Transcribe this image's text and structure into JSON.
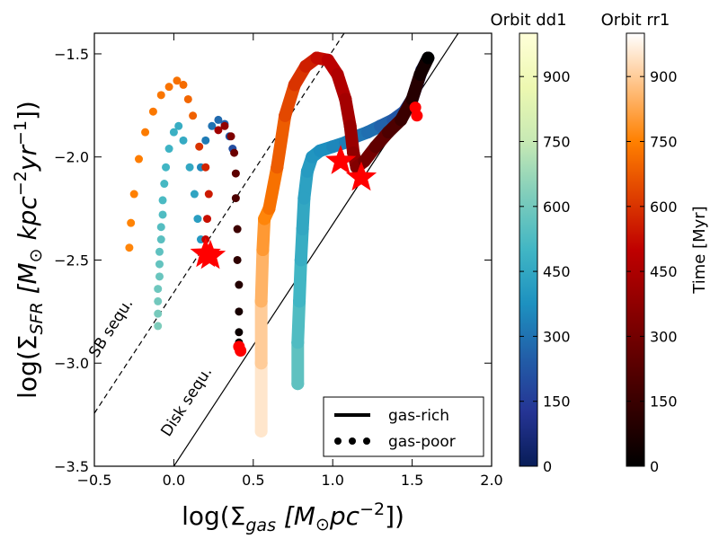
{
  "chart_data": {
    "type": "scatter",
    "xlabel": [
      "log(Σ",
      "gas",
      " [M",
      "⊙",
      "pc",
      "−2",
      "])"
    ],
    "ylabel": [
      "log(Σ",
      "SFR",
      " [M",
      "⊙",
      " kpc",
      "−2",
      "yr",
      "−1",
      "])"
    ],
    "xlim": [
      -0.5,
      2.0
    ],
    "ylim": [
      -3.5,
      -1.4
    ],
    "xticks": [
      {
        "value": -0.5,
        "label": "−0.5"
      },
      {
        "value": 0.0,
        "label": "0.0"
      },
      {
        "value": 0.5,
        "label": "0.5"
      },
      {
        "value": 1.0,
        "label": "1.0"
      },
      {
        "value": 1.5,
        "label": "1.5"
      },
      {
        "value": 2.0,
        "label": "2.0"
      }
    ],
    "yticks": [
      {
        "value": -3.5,
        "label": "−3.5"
      },
      {
        "value": -3.0,
        "label": "−3.0"
      },
      {
        "value": -2.5,
        "label": "−2.5"
      },
      {
        "value": -2.0,
        "label": "−2.0"
      },
      {
        "value": -1.5,
        "label": "−1.5"
      }
    ],
    "colorbars": [
      {
        "title": "Orbit dd1",
        "lim": [
          0,
          1000
        ],
        "ticks": [
          0,
          150,
          300,
          450,
          600,
          750,
          900
        ],
        "colors": [
          "#081d58",
          "#253494",
          "#225ea8",
          "#1d91c0",
          "#41b6c4",
          "#7fcdbb",
          "#c7e9b4",
          "#edf8b1",
          "#ffffd9"
        ]
      },
      {
        "title": "Orbit rr1",
        "label": "Time [Myr]",
        "lim": [
          0,
          1000
        ],
        "ticks": [
          0,
          150,
          300,
          450,
          600,
          750,
          900
        ],
        "colors": [
          "#000000",
          "#600000",
          "#bf0000",
          "#ff8000",
          "#ffffff"
        ]
      }
    ],
    "series": [
      {
        "colorbar": 0,
        "style": "line",
        "x": [
          0.78,
          0.78,
          0.79,
          0.8,
          0.81,
          0.82,
          0.84,
          0.87,
          0.92,
          1.0,
          1.08,
          1.15,
          1.22,
          1.3,
          1.38,
          1.45,
          1.5,
          1.53,
          1.56,
          1.6
        ],
        "y": [
          -3.1,
          -2.9,
          -2.7,
          -2.5,
          -2.35,
          -2.2,
          -2.07,
          -2.0,
          -1.97,
          -1.95,
          -1.93,
          -1.9,
          -1.88,
          -1.85,
          -1.82,
          -1.78,
          -1.72,
          -1.65,
          -1.58,
          -1.52
        ],
        "t": [
          560,
          530,
          500,
          470,
          450,
          430,
          410,
          390,
          370,
          350,
          330,
          310,
          290,
          260,
          230,
          200,
          150,
          100,
          50,
          0
        ]
      },
      {
        "colorbar": 1,
        "style": "line",
        "x": [
          0.55,
          0.55,
          0.55,
          0.56,
          0.57,
          0.6,
          0.65,
          0.7,
          0.76,
          0.83,
          0.9,
          0.97,
          1.03,
          1.08,
          1.11,
          1.13,
          1.15,
          1.2,
          1.27,
          1.35,
          1.43,
          1.5,
          1.55,
          1.6
        ],
        "y": [
          -3.33,
          -3.0,
          -2.7,
          -2.45,
          -2.3,
          -2.25,
          -2.05,
          -1.8,
          -1.65,
          -1.56,
          -1.52,
          -1.53,
          -1.6,
          -1.72,
          -1.85,
          -1.98,
          -2.05,
          -2.02,
          -1.95,
          -1.88,
          -1.82,
          -1.72,
          -1.6,
          -1.52
        ],
        "t": [
          950,
          900,
          850,
          800,
          760,
          720,
          680,
          640,
          600,
          560,
          520,
          490,
          460,
          430,
          400,
          370,
          340,
          300,
          250,
          200,
          150,
          100,
          50,
          0
        ]
      },
      {
        "colorbar": 0,
        "style": "dots",
        "x": [
          -0.1,
          -0.1,
          -0.1,
          -0.1,
          -0.09,
          -0.09,
          -0.09,
          -0.08,
          -0.08,
          -0.07,
          -0.07,
          -0.06,
          -0.05,
          -0.03,
          0.0,
          0.03,
          0.06,
          0.1,
          0.13,
          0.15,
          0.17,
          0.17,
          0.2,
          0.24,
          0.28,
          0.32,
          0.35,
          0.37
        ],
        "y": [
          -2.82,
          -2.76,
          -2.7,
          -2.64,
          -2.58,
          -2.52,
          -2.46,
          -2.4,
          -2.34,
          -2.28,
          -2.21,
          -2.13,
          -2.05,
          -1.96,
          -1.88,
          -1.85,
          -1.92,
          -2.05,
          -2.18,
          -2.3,
          -2.4,
          -2.05,
          -1.92,
          -1.85,
          -1.82,
          -1.84,
          -1.9,
          -1.96
        ],
        "t": [
          620,
          610,
          600,
          590,
          580,
          570,
          560,
          550,
          540,
          530,
          520,
          510,
          500,
          490,
          480,
          470,
          460,
          450,
          440,
          420,
          400,
          350,
          320,
          300,
          280,
          250,
          220,
          200
        ]
      },
      {
        "colorbar": 1,
        "style": "dots",
        "x": [
          -0.28,
          -0.27,
          -0.25,
          -0.22,
          -0.18,
          -0.13,
          -0.08,
          -0.03,
          0.02,
          0.06,
          0.09,
          0.12,
          0.16,
          0.2,
          0.22,
          0.21,
          0.2,
          0.28,
          0.32,
          0.36,
          0.38,
          0.39,
          0.39,
          0.4,
          0.4,
          0.41,
          0.41,
          0.41,
          0.41
        ],
        "y": [
          -2.44,
          -2.32,
          -2.18,
          -2.01,
          -1.88,
          -1.78,
          -1.7,
          -1.66,
          -1.63,
          -1.65,
          -1.72,
          -1.8,
          -1.95,
          -2.05,
          -2.18,
          -2.3,
          -2.4,
          -1.87,
          -1.85,
          -1.9,
          -1.98,
          -2.08,
          -2.2,
          -2.35,
          -2.5,
          -2.62,
          -2.75,
          -2.85,
          -2.9
        ],
        "t": [
          760,
          755,
          750,
          745,
          740,
          735,
          730,
          725,
          720,
          710,
          700,
          690,
          600,
          570,
          550,
          530,
          510,
          420,
          380,
          330,
          280,
          240,
          200,
          160,
          120,
          90,
          60,
          30,
          0
        ]
      }
    ],
    "endpoints": {
      "color": "#ff0000",
      "x": [
        0.41,
        0.42,
        1.52,
        1.53
      ],
      "y": [
        -2.92,
        -2.94,
        -1.76,
        -1.8
      ]
    },
    "stars": {
      "color": "#ff0000",
      "x": [
        0.2,
        0.23,
        1.05,
        1.18
      ],
      "y": [
        -2.47,
        -2.48,
        -2.02,
        -2.1
      ]
    },
    "reference_lines": [
      {
        "label": "SB sequ.",
        "dashed": true,
        "x": [
          -0.5,
          1.072
        ],
        "y": [
          -3.243,
          -1.4
        ]
      },
      {
        "label": "Disk sequ.",
        "dashed": false,
        "x": [
          0.0,
          1.79
        ],
        "y": [
          -3.5,
          -1.4
        ]
      }
    ],
    "legend": [
      {
        "label": "gas-rich",
        "style": "line"
      },
      {
        "label": "gas-poor",
        "style": "dots"
      }
    ]
  }
}
